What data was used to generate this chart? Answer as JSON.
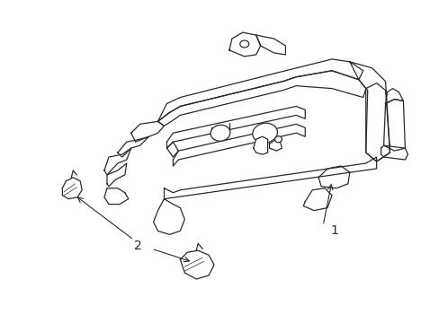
{
  "background_color": "#ffffff",
  "line_color": "#2a2a2a",
  "line_width": 0.9,
  "label_1_text": "1",
  "label_2_text": "2",
  "font_size": 10
}
